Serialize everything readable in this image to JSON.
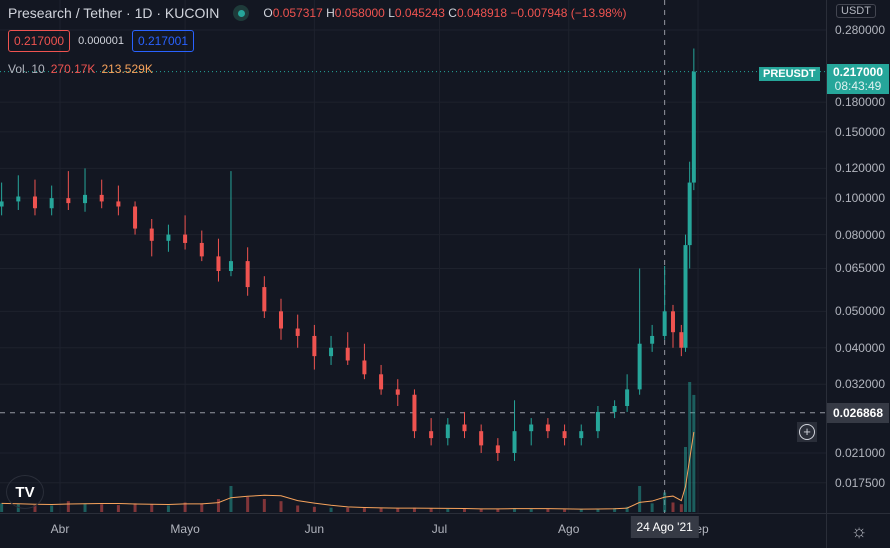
{
  "header": {
    "title": "Presearch / Tether · 1D · KUCOIN",
    "status_color": "#26a69a",
    "ohlc": {
      "o_label": "O",
      "o": "0.057317",
      "h_label": "H",
      "h": "0.058000",
      "l_label": "L",
      "l": "0.045243",
      "c_label": "C",
      "c": "0.048918",
      "change": "−0.007948 (−13.98%)"
    },
    "sell_price": "0.217000",
    "spread": "0.000001",
    "buy_price": "0.217001",
    "volume_label": "Vol.",
    "volume_period": "10",
    "volume_value": "270.17K",
    "volume_ma": "213.529K"
  },
  "price_axis": {
    "unit": "USDT",
    "ticks": [
      "0.280000",
      "0.180000",
      "0.150000",
      "0.120000",
      "0.100000",
      "0.080000",
      "0.065000",
      "0.050000",
      "0.040000",
      "0.032000",
      "0.021000",
      "0.017500"
    ],
    "last_price": "0.217000",
    "countdown": "08:43:49",
    "symbol_tag": "PREUSDT",
    "crosshair_price": "0.026868"
  },
  "time_axis": {
    "ticks": [
      "Abr",
      "Mayo",
      "Jun",
      "Jul",
      "Ago",
      "Sep"
    ],
    "crosshair_date": "24 Ago '21"
  },
  "colors": {
    "up": "#26a69a",
    "down": "#ef5350",
    "background": "#131722",
    "grid": "#1e222d",
    "volume_ma": "#f7a35c"
  },
  "chart_data": {
    "type": "candlestick",
    "scale": "log",
    "ylim": [
      0.0165,
      0.3
    ],
    "xlim": [
      "2021-03-18",
      "2021-09-08"
    ],
    "grid": true,
    "legend": "top-left",
    "y_ticks": [
      0.28,
      0.18,
      0.15,
      0.12,
      0.1,
      0.08,
      0.065,
      0.05,
      0.04,
      0.032,
      0.021,
      0.0175
    ],
    "candles": [
      {
        "d": "2021-03-18",
        "o": 0.095,
        "h": 0.11,
        "l": 0.09,
        "c": 0.098,
        "v": 20
      },
      {
        "d": "2021-03-22",
        "o": 0.098,
        "h": 0.115,
        "l": 0.093,
        "c": 0.101,
        "v": 18
      },
      {
        "d": "2021-03-26",
        "o": 0.101,
        "h": 0.112,
        "l": 0.09,
        "c": 0.094,
        "v": 16
      },
      {
        "d": "2021-03-30",
        "o": 0.094,
        "h": 0.108,
        "l": 0.09,
        "c": 0.1,
        "v": 15
      },
      {
        "d": "2021-04-03",
        "o": 0.1,
        "h": 0.118,
        "l": 0.093,
        "c": 0.097,
        "v": 25
      },
      {
        "d": "2021-04-07",
        "o": 0.097,
        "h": 0.12,
        "l": 0.092,
        "c": 0.102,
        "v": 20
      },
      {
        "d": "2021-04-11",
        "o": 0.102,
        "h": 0.112,
        "l": 0.094,
        "c": 0.098,
        "v": 18
      },
      {
        "d": "2021-04-15",
        "o": 0.098,
        "h": 0.108,
        "l": 0.09,
        "c": 0.095,
        "v": 16
      },
      {
        "d": "2021-04-19",
        "o": 0.095,
        "h": 0.098,
        "l": 0.08,
        "c": 0.083,
        "v": 20
      },
      {
        "d": "2021-04-23",
        "o": 0.083,
        "h": 0.088,
        "l": 0.07,
        "c": 0.077,
        "v": 18
      },
      {
        "d": "2021-04-27",
        "o": 0.077,
        "h": 0.085,
        "l": 0.072,
        "c": 0.08,
        "v": 15
      },
      {
        "d": "2021-05-01",
        "o": 0.08,
        "h": 0.09,
        "l": 0.073,
        "c": 0.076,
        "v": 22
      },
      {
        "d": "2021-05-05",
        "o": 0.076,
        "h": 0.082,
        "l": 0.068,
        "c": 0.07,
        "v": 20
      },
      {
        "d": "2021-05-09",
        "o": 0.07,
        "h": 0.078,
        "l": 0.06,
        "c": 0.064,
        "v": 30
      },
      {
        "d": "2021-05-12",
        "o": 0.064,
        "h": 0.118,
        "l": 0.062,
        "c": 0.068,
        "v": 60
      },
      {
        "d": "2021-05-16",
        "o": 0.068,
        "h": 0.074,
        "l": 0.055,
        "c": 0.058,
        "v": 35
      },
      {
        "d": "2021-05-20",
        "o": 0.058,
        "h": 0.062,
        "l": 0.048,
        "c": 0.05,
        "v": 30
      },
      {
        "d": "2021-05-24",
        "o": 0.05,
        "h": 0.054,
        "l": 0.042,
        "c": 0.045,
        "v": 25
      },
      {
        "d": "2021-05-28",
        "o": 0.045,
        "h": 0.049,
        "l": 0.04,
        "c": 0.043,
        "v": 15
      },
      {
        "d": "2021-06-01",
        "o": 0.043,
        "h": 0.046,
        "l": 0.035,
        "c": 0.038,
        "v": 12
      },
      {
        "d": "2021-06-05",
        "o": 0.038,
        "h": 0.043,
        "l": 0.036,
        "c": 0.04,
        "v": 10
      },
      {
        "d": "2021-06-09",
        "o": 0.04,
        "h": 0.044,
        "l": 0.036,
        "c": 0.037,
        "v": 10
      },
      {
        "d": "2021-06-13",
        "o": 0.037,
        "h": 0.041,
        "l": 0.033,
        "c": 0.034,
        "v": 9
      },
      {
        "d": "2021-06-17",
        "o": 0.034,
        "h": 0.036,
        "l": 0.03,
        "c": 0.031,
        "v": 9
      },
      {
        "d": "2021-06-21",
        "o": 0.031,
        "h": 0.033,
        "l": 0.028,
        "c": 0.03,
        "v": 8
      },
      {
        "d": "2021-06-25",
        "o": 0.03,
        "h": 0.031,
        "l": 0.023,
        "c": 0.024,
        "v": 10
      },
      {
        "d": "2021-06-29",
        "o": 0.024,
        "h": 0.026,
        "l": 0.022,
        "c": 0.023,
        "v": 8
      },
      {
        "d": "2021-07-03",
        "o": 0.023,
        "h": 0.026,
        "l": 0.022,
        "c": 0.025,
        "v": 7
      },
      {
        "d": "2021-07-07",
        "o": 0.025,
        "h": 0.027,
        "l": 0.023,
        "c": 0.024,
        "v": 7
      },
      {
        "d": "2021-07-11",
        "o": 0.024,
        "h": 0.025,
        "l": 0.021,
        "c": 0.022,
        "v": 7
      },
      {
        "d": "2021-07-15",
        "o": 0.022,
        "h": 0.023,
        "l": 0.02,
        "c": 0.021,
        "v": 8
      },
      {
        "d": "2021-07-19",
        "o": 0.021,
        "h": 0.029,
        "l": 0.02,
        "c": 0.024,
        "v": 9
      },
      {
        "d": "2021-07-23",
        "o": 0.024,
        "h": 0.026,
        "l": 0.022,
        "c": 0.025,
        "v": 7
      },
      {
        "d": "2021-07-27",
        "o": 0.025,
        "h": 0.026,
        "l": 0.023,
        "c": 0.024,
        "v": 7
      },
      {
        "d": "2021-07-31",
        "o": 0.024,
        "h": 0.025,
        "l": 0.022,
        "c": 0.023,
        "v": 6
      },
      {
        "d": "2021-08-04",
        "o": 0.023,
        "h": 0.025,
        "l": 0.022,
        "c": 0.024,
        "v": 7
      },
      {
        "d": "2021-08-08",
        "o": 0.024,
        "h": 0.028,
        "l": 0.023,
        "c": 0.027,
        "v": 8
      },
      {
        "d": "2021-08-12",
        "o": 0.027,
        "h": 0.029,
        "l": 0.026,
        "c": 0.028,
        "v": 9
      },
      {
        "d": "2021-08-15",
        "o": 0.028,
        "h": 0.034,
        "l": 0.027,
        "c": 0.031,
        "v": 12
      },
      {
        "d": "2021-08-18",
        "o": 0.031,
        "h": 0.065,
        "l": 0.03,
        "c": 0.041,
        "v": 60
      },
      {
        "d": "2021-08-21",
        "o": 0.041,
        "h": 0.046,
        "l": 0.039,
        "c": 0.043,
        "v": 20
      },
      {
        "d": "2021-08-24",
        "o": 0.043,
        "h": 0.066,
        "l": 0.042,
        "c": 0.05,
        "v": 45
      },
      {
        "d": "2021-08-26",
        "o": 0.05,
        "h": 0.052,
        "l": 0.04,
        "c": 0.044,
        "v": 22
      },
      {
        "d": "2021-08-28",
        "o": 0.044,
        "h": 0.046,
        "l": 0.038,
        "c": 0.04,
        "v": 18
      },
      {
        "d": "2021-08-29",
        "o": 0.04,
        "h": 0.08,
        "l": 0.039,
        "c": 0.075,
        "v": 150
      },
      {
        "d": "2021-08-30",
        "o": 0.075,
        "h": 0.125,
        "l": 0.065,
        "c": 0.11,
        "v": 300
      },
      {
        "d": "2021-08-31",
        "o": 0.11,
        "h": 0.25,
        "l": 0.105,
        "c": 0.217,
        "v": 270.17
      }
    ]
  }
}
